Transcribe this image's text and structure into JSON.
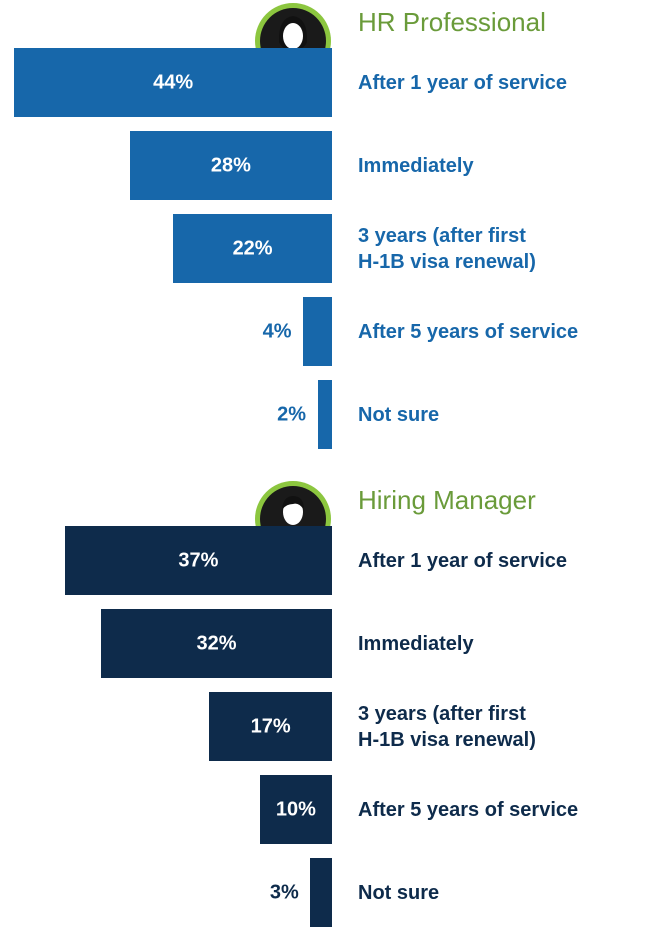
{
  "chart_data": [
    {
      "type": "bar",
      "title": "HR Professional",
      "color": "#1767aa",
      "label_color": "#1767aa",
      "categories": [
        "After 1 year of service",
        "Immediately",
        "3 years (after first\nH-1B visa renewal)",
        "After 5 years of service",
        "Not sure"
      ],
      "values": [
        44,
        28,
        22,
        4,
        2
      ],
      "value_labels": [
        "44%",
        "28%",
        "22%",
        "4%",
        "2%"
      ]
    },
    {
      "type": "bar",
      "title": "Hiring Manager",
      "color": "#0e2b4b",
      "label_color": "#0e2b4b",
      "categories": [
        "After 1 year of service",
        "Immediately",
        "3 years (after first\nH-1B visa renewal)",
        "After 5 years of service",
        "Not sure"
      ],
      "values": [
        37,
        32,
        17,
        10,
        3
      ],
      "value_labels": [
        "37%",
        "32%",
        "17%",
        "10%",
        "3%"
      ]
    }
  ]
}
